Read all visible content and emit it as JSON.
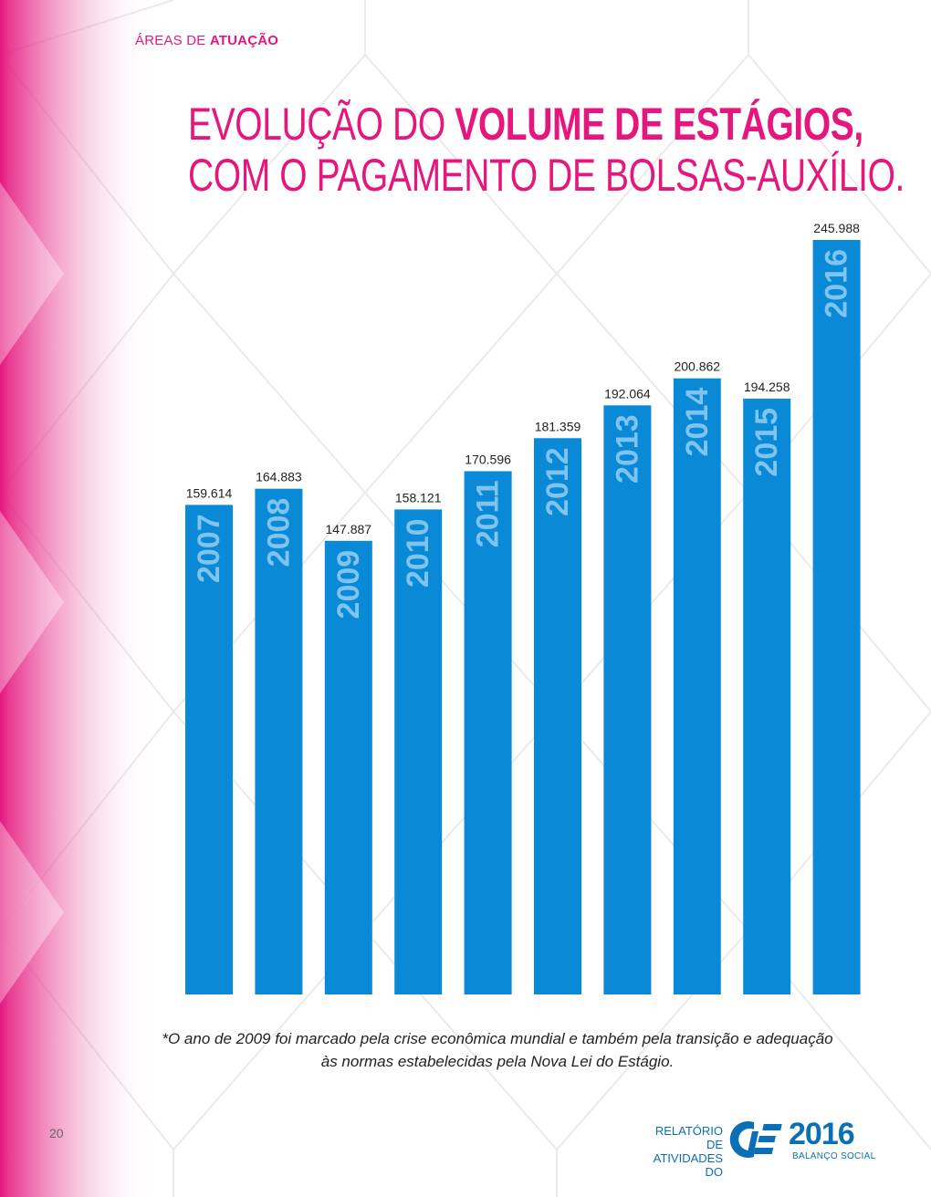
{
  "header": {
    "section_label_light": "ÁREAS DE",
    "section_label_bold": "ATUAÇÃO",
    "title_line1_light": "EVOLUÇÃO DO",
    "title_line1_bold": "VOLUME DE ESTÁGIOS,",
    "title_line2": "COM O PAGAMENTO DE BOLSAS-AUXÍLIO."
  },
  "chart_data": {
    "type": "bar",
    "categories": [
      "2007",
      "2008",
      "2009",
      "2010",
      "2011",
      "2012",
      "2013",
      "2014",
      "2015",
      "2016"
    ],
    "values": [
      159614,
      164883,
      147887,
      158121,
      170596,
      181359,
      192064,
      200862,
      194258,
      245988
    ],
    "value_labels": [
      "159.614",
      "164.883",
      "147.887",
      "158.121",
      "170.596",
      "181.359",
      "192.064",
      "200.862",
      "194.258",
      "245.988"
    ],
    "bar_color": "#0a8ad6",
    "category_label_color": "#7ec4ee",
    "grid": false,
    "legend": "none"
  },
  "footnote": {
    "line1": "*O ano de 2009 foi marcado pela crise econômica mundial e também pela transição e adequação",
    "line2": "às normas estabelecidas pela Nova Lei do Estágio."
  },
  "footer": {
    "page_number": "20",
    "brand_line1": "RELATÓRIO DE",
    "brand_line2": "ATIVIDADES DO",
    "brand_logo_icon": "cie-logo-icon",
    "brand_year": "2016",
    "brand_sub": "BALANÇO SOCIAL"
  },
  "colors": {
    "accent_pink": "#e5177e",
    "brand_blue": "#0b6fb5"
  }
}
